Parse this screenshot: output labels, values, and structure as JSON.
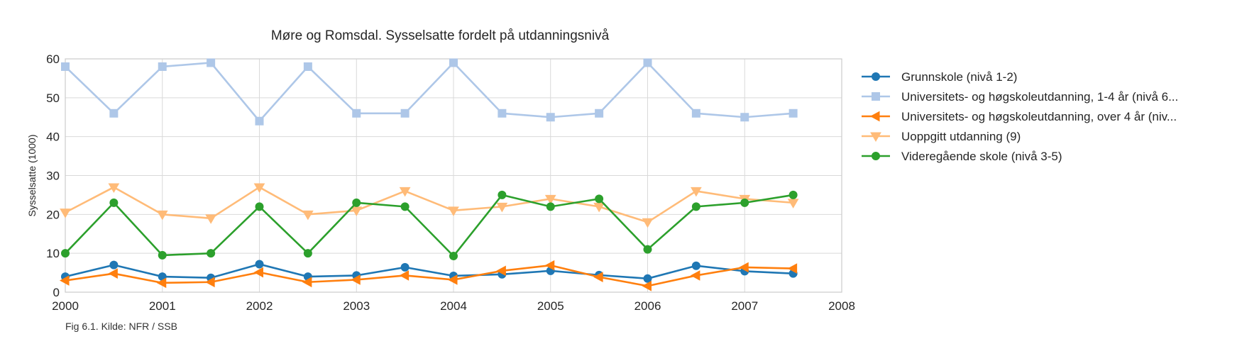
{
  "chart_data": {
    "type": "line",
    "title": "Møre og Romsdal. Sysselsatte fordelt på utdanningsnivå",
    "xlabel": "",
    "ylabel": "Sysselsatte (1000)",
    "xlim": [
      2000,
      2008
    ],
    "ylim": [
      0,
      60
    ],
    "x_ticks": [
      "2000",
      "2001",
      "2002",
      "2003",
      "2004",
      "2005",
      "2006",
      "2007",
      "2008"
    ],
    "y_ticks": [
      "0",
      "10",
      "20",
      "30",
      "40",
      "50",
      "60"
    ],
    "grid": true,
    "legend_position": "right",
    "x": [
      2000,
      2000.5,
      2001,
      2001.5,
      2002,
      2002.5,
      2003,
      2003.5,
      2004,
      2004.5,
      2005,
      2005.5,
      2006,
      2006.5,
      2007,
      2007.5
    ],
    "series": [
      {
        "name": "Grunnskole (nivå 1-2)",
        "color": "#1f77b4",
        "marker": "circle",
        "values": [
          4.0,
          7.0,
          4.0,
          3.7,
          7.2,
          4.0,
          4.3,
          6.4,
          4.2,
          4.6,
          5.5,
          4.4,
          3.5,
          6.8,
          5.4,
          4.8
        ]
      },
      {
        "name": "Universitets- og høgskoleutdanning, 1-4 år (nivå 6...",
        "color": "#aec7e8",
        "marker": "square",
        "values": [
          58,
          46,
          58,
          59,
          44,
          58,
          46,
          46,
          59,
          46,
          45,
          46,
          59,
          46,
          45,
          46
        ]
      },
      {
        "name": "Universitets- og høgskoleutdanning, over 4 år (niv...",
        "color": "#ff7f0e",
        "marker": "triangle-left",
        "values": [
          3.0,
          4.8,
          2.4,
          2.6,
          5.1,
          2.6,
          3.2,
          4.3,
          3.2,
          5.5,
          6.9,
          3.9,
          1.6,
          4.3,
          6.4,
          6.1
        ]
      },
      {
        "name": "Uoppgitt utdanning (9)",
        "color": "#ffbb78",
        "marker": "triangle-down",
        "values": [
          20.5,
          27,
          20,
          19,
          27,
          20,
          21,
          26,
          21,
          22,
          24,
          22,
          18,
          26,
          24,
          23
        ]
      },
      {
        "name": "Videregående skole (nivå 3-5)",
        "color": "#2ca02c",
        "marker": "circle",
        "values": [
          10,
          23,
          9.5,
          10,
          22,
          10,
          23,
          22,
          9.3,
          25,
          22,
          24,
          11,
          22,
          23,
          25
        ]
      }
    ]
  },
  "caption": "Fig 6.1. Kilde: NFR / SSB"
}
